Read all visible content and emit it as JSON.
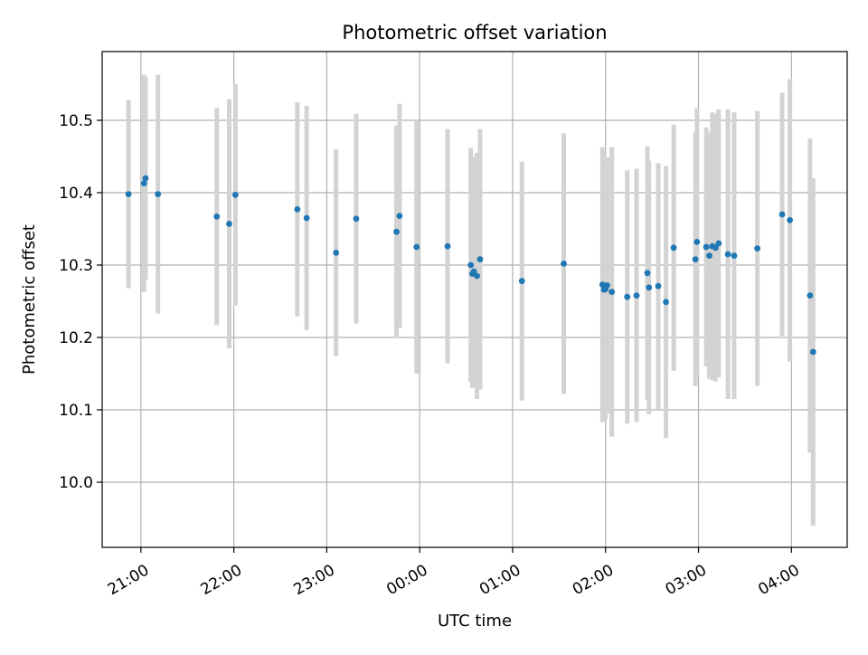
{
  "chart_data": {
    "type": "scatter",
    "title": "Photometric offset variation",
    "xlabel": "UTC time",
    "ylabel": "Photometric offset",
    "x_is_time": true,
    "xlim": [
      "20:35",
      "04:36"
    ],
    "ylim": [
      9.91,
      10.595
    ],
    "grid": true,
    "x_ticks": [
      "21:00",
      "22:00",
      "23:00",
      "00:00",
      "01:00",
      "02:00",
      "03:00",
      "04:00"
    ],
    "y_ticks": [
      "10.0",
      "10.1",
      "10.2",
      "10.3",
      "10.4",
      "10.5"
    ],
    "colors": {
      "points": "#1f77b4",
      "error_bars": "#d3d3d3",
      "grid": "#b0b0b0"
    },
    "series": [
      {
        "x": [
          "20:52",
          "21:02",
          "21:03",
          "21:11",
          "21:49",
          "21:57",
          "22:01",
          "22:41",
          "22:47",
          "23:06",
          "23:19",
          "23:45",
          "23:47",
          "23:58",
          "00:18",
          "00:33",
          "00:34",
          "00:35",
          "00:37",
          "00:39",
          "01:06",
          "01:33",
          "01:58",
          "01:59",
          "02:00",
          "02:01",
          "02:04",
          "02:14",
          "02:20",
          "02:27",
          "02:28",
          "02:34",
          "02:39",
          "02:44",
          "02:58",
          "02:59",
          "03:05",
          "03:07",
          "03:09",
          "03:11",
          "03:13",
          "03:19",
          "03:23",
          "03:38",
          "03:54",
          "03:59",
          "04:12",
          "04:14"
        ],
        "y": [
          10.398,
          10.413,
          10.42,
          10.398,
          10.367,
          10.357,
          10.397,
          10.377,
          10.365,
          10.317,
          10.364,
          10.346,
          10.368,
          10.325,
          10.326,
          10.3,
          10.288,
          10.291,
          10.285,
          10.308,
          10.278,
          10.302,
          10.273,
          10.266,
          10.267,
          10.272,
          10.263,
          10.256,
          10.258,
          10.289,
          10.269,
          10.271,
          10.249,
          10.324,
          10.308,
          10.332,
          10.325,
          10.313,
          10.326,
          10.324,
          10.33,
          10.315,
          10.313,
          10.323,
          10.37,
          10.362,
          10.258,
          10.18
        ],
        "yerr": [
          0.13,
          0.15,
          0.14,
          0.165,
          0.15,
          0.172,
          0.153,
          0.148,
          0.155,
          0.143,
          0.145,
          0.147,
          0.155,
          0.175,
          0.162,
          0.162,
          0.158,
          0.158,
          0.17,
          0.18,
          0.165,
          0.18,
          0.19,
          0.175,
          0.18,
          0.177,
          0.2,
          0.175,
          0.175,
          0.175,
          0.175,
          0.17,
          0.188,
          0.17,
          0.175,
          0.185,
          0.165,
          0.17,
          0.185,
          0.185,
          0.185,
          0.2,
          0.198,
          0.19,
          0.168,
          0.195,
          0.217,
          0.24
        ]
      }
    ]
  }
}
